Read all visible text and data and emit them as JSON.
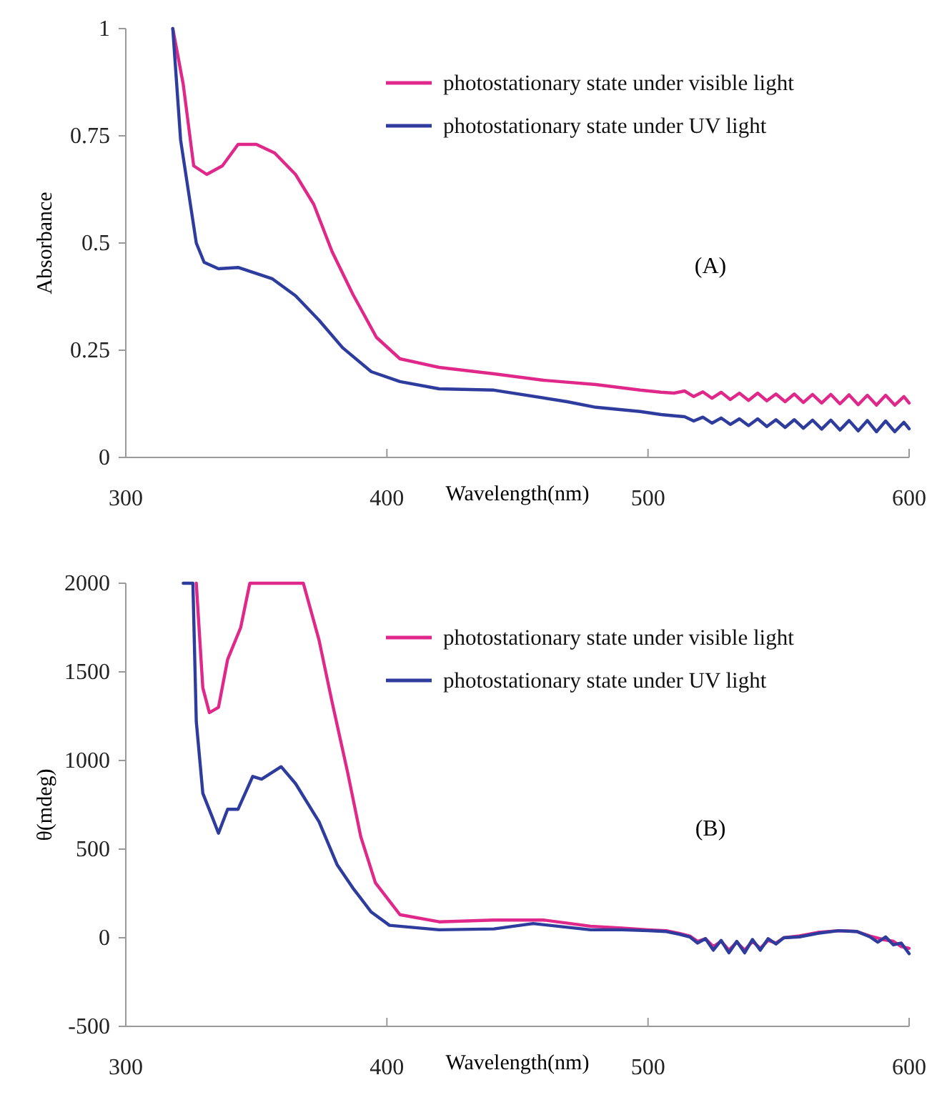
{
  "chart_data": [
    {
      "type": "line",
      "xlabel": "Wavelength(nm)",
      "ylabel": "Absorbance",
      "annotations": [
        "(A)"
      ],
      "xlim": [
        300,
        600
      ],
      "xticks": [
        300,
        400,
        500,
        600
      ],
      "ylim": [
        0,
        1
      ],
      "yticks": [
        0,
        0.25,
        0.5,
        0.75,
        1
      ],
      "legend": "top right",
      "grid": false,
      "series": [
        {
          "name": "photostationary state under visible light",
          "color": "#e0288a",
          "x": [
            318,
            322,
            326,
            331,
            337,
            343,
            350,
            357,
            365,
            372,
            379,
            387,
            396,
            405,
            420,
            441,
            460,
            480,
            497,
            505,
            510,
            514,
            517.5,
            521,
            524.5,
            528,
            531.5,
            535,
            538.5,
            542,
            545.5,
            549,
            552.5,
            556,
            559.5,
            563,
            566.5,
            570,
            573.5,
            577,
            580.5,
            584,
            587.5,
            591,
            594.5,
            598,
            600
          ],
          "values": [
            1,
            0.87,
            0.68,
            0.66,
            0.68,
            0.73,
            0.73,
            0.71,
            0.66,
            0.59,
            0.48,
            0.38,
            0.28,
            0.23,
            0.21,
            0.195,
            0.18,
            0.17,
            0.157,
            0.152,
            0.15,
            0.155,
            0.142,
            0.153,
            0.138,
            0.152,
            0.135,
            0.15,
            0.133,
            0.15,
            0.132,
            0.148,
            0.13,
            0.148,
            0.128,
            0.147,
            0.127,
            0.147,
            0.125,
            0.146,
            0.123,
            0.145,
            0.122,
            0.145,
            0.122,
            0.142,
            0.127
          ]
        },
        {
          "name": "photostationary state under UV light",
          "color": "#2e3c9e",
          "x": [
            318,
            321,
            324,
            327,
            330,
            335.5,
            343,
            356,
            365,
            374,
            383,
            394,
            405,
            420,
            441,
            469,
            480,
            497,
            505,
            510,
            514,
            517.5,
            521,
            524.5,
            528,
            531.5,
            535,
            538.5,
            542,
            545.5,
            549,
            552.5,
            556,
            559.5,
            563,
            566.5,
            570,
            573.5,
            577,
            580.5,
            584,
            587.5,
            591,
            594.5,
            598,
            600
          ],
          "values": [
            1,
            0.74,
            0.62,
            0.5,
            0.455,
            0.44,
            0.443,
            0.417,
            0.377,
            0.32,
            0.256,
            0.2,
            0.177,
            0.16,
            0.157,
            0.13,
            0.117,
            0.107,
            0.1,
            0.097,
            0.095,
            0.085,
            0.094,
            0.08,
            0.092,
            0.077,
            0.09,
            0.074,
            0.09,
            0.072,
            0.088,
            0.07,
            0.088,
            0.068,
            0.087,
            0.066,
            0.087,
            0.064,
            0.086,
            0.062,
            0.086,
            0.06,
            0.085,
            0.06,
            0.082,
            0.067
          ]
        }
      ]
    },
    {
      "type": "line",
      "xlabel": "Wavelength(nm)",
      "ylabel": "θ(mdeg)",
      "annotations": [
        "(B)"
      ],
      "xlim": [
        300,
        600
      ],
      "xticks": [
        300,
        400,
        500,
        600
      ],
      "ylim": [
        -500,
        2000
      ],
      "yticks": [
        -500,
        0,
        500,
        1000,
        1500,
        2000
      ],
      "legend": "top right",
      "grid": false,
      "series": [
        {
          "name": "photostationary state under visible light",
          "color": "#e0288a",
          "x": [
            327,
            329.5,
            332,
            335.5,
            339,
            344,
            347.5,
            368,
            374,
            379,
            385,
            390,
            395.6,
            405,
            420,
            441,
            460,
            478,
            490,
            500,
            507,
            512,
            516,
            519,
            522,
            525,
            528,
            531,
            534,
            537,
            540,
            543,
            546,
            549,
            552,
            558,
            565,
            573,
            580,
            585,
            590,
            594,
            597,
            600
          ],
          "values": [
            2000,
            1410,
            1270,
            1300,
            1570,
            1750,
            2000,
            2000,
            1680,
            1330,
            930,
            570,
            310,
            130,
            90,
            100,
            100,
            65,
            55,
            45,
            40,
            25,
            10,
            -20,
            -5,
            -50,
            -20,
            -70,
            -25,
            -70,
            -20,
            -60,
            -15,
            -30,
            0,
            10,
            30,
            40,
            35,
            10,
            -10,
            -20,
            -50,
            -60
          ]
        },
        {
          "name": "photostationary state under UV light",
          "color": "#2e3c9e",
          "x": [
            322,
            325.7,
            327,
            329.5,
            333,
            335.5,
            339,
            343,
            348.6,
            352,
            359.5,
            365,
            374,
            381,
            387,
            394,
            401,
            420,
            441,
            456,
            478,
            490,
            500,
            507,
            512,
            516,
            519,
            522,
            525,
            528,
            531,
            534,
            537,
            540,
            543,
            546,
            549,
            552,
            558,
            565,
            573,
            580,
            585,
            588,
            591,
            594,
            597,
            600
          ],
          "values": [
            2000,
            2000,
            1220,
            815,
            685,
            590,
            725,
            725,
            910,
            895,
            965,
            870,
            655,
            410,
            280,
            145,
            70,
            45,
            50,
            80,
            45,
            45,
            40,
            35,
            20,
            5,
            -30,
            -5,
            -70,
            -15,
            -85,
            -20,
            -85,
            -10,
            -70,
            -5,
            -35,
            0,
            5,
            25,
            40,
            35,
            5,
            -25,
            5,
            -40,
            -30,
            -90
          ]
        }
      ]
    }
  ]
}
